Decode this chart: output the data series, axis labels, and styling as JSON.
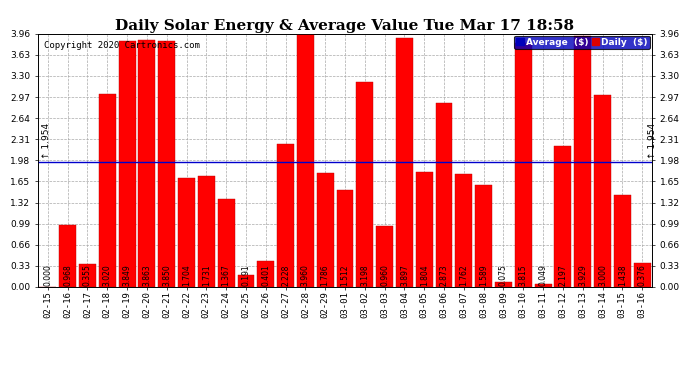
{
  "title": "Daily Solar Energy & Average Value Tue Mar 17 18:58",
  "copyright": "Copyright 2020 Cartronics.com",
  "average_value": 1.954,
  "categories": [
    "02-15",
    "02-16",
    "02-17",
    "02-18",
    "02-19",
    "02-20",
    "02-21",
    "02-22",
    "02-23",
    "02-24",
    "02-25",
    "02-26",
    "02-27",
    "02-28",
    "02-29",
    "03-01",
    "03-02",
    "03-03",
    "03-04",
    "03-05",
    "03-06",
    "03-07",
    "03-08",
    "03-09",
    "03-10",
    "03-11",
    "03-12",
    "03-13",
    "03-14",
    "03-15",
    "03-16"
  ],
  "values": [
    0.0,
    0.968,
    0.355,
    3.02,
    3.849,
    3.863,
    3.85,
    1.704,
    1.731,
    1.367,
    0.191,
    0.401,
    2.228,
    3.96,
    1.786,
    1.512,
    3.198,
    0.96,
    3.897,
    1.804,
    2.873,
    1.762,
    1.589,
    0.075,
    3.815,
    0.049,
    2.197,
    3.929,
    3.0,
    1.438,
    0.376
  ],
  "bar_color": "#ff0000",
  "bar_edge_color": "#bb0000",
  "average_line_color": "#0000cc",
  "ylim": [
    0,
    3.96
  ],
  "yticks": [
    0.0,
    0.33,
    0.66,
    0.99,
    1.32,
    1.65,
    1.98,
    2.31,
    2.64,
    2.97,
    3.3,
    3.63,
    3.96
  ],
  "grid_color": "#aaaaaa",
  "background_color": "#ffffff",
  "legend_avg_bg": "#0000bb",
  "legend_daily_bg": "#dd0000",
  "title_fontsize": 11,
  "value_fontsize": 5.5,
  "tick_fontsize": 6.5,
  "copyright_fontsize": 6.5,
  "avg_label": "Average  ($)",
  "daily_label": "Daily  ($)"
}
